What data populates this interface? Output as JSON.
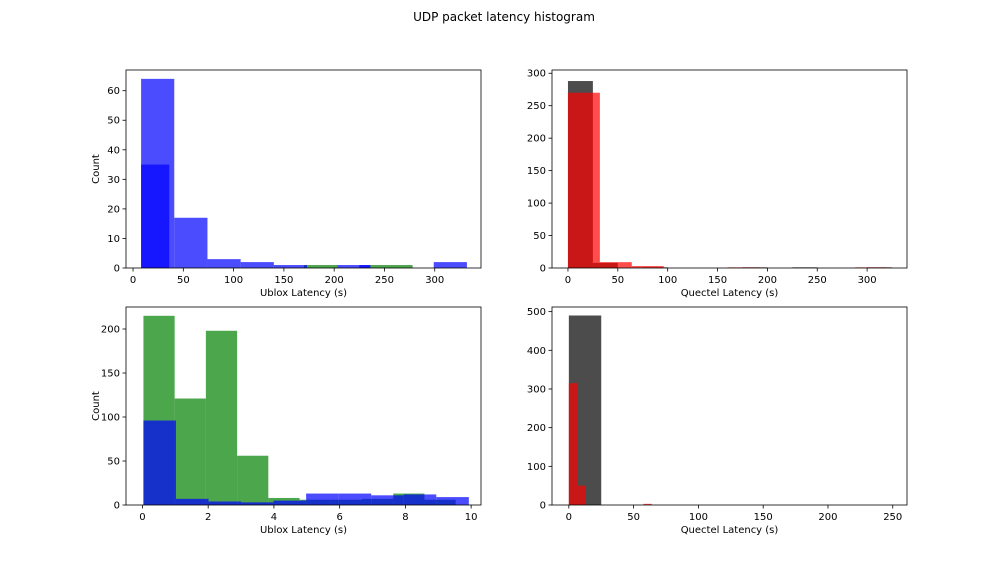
{
  "figure": {
    "title": "UDP packet latency histogram"
  },
  "chart_data": [
    {
      "type": "bar",
      "xlabel": "Ublox Latency (s)",
      "ylabel": "Count",
      "xlim": [
        -7,
        346
      ],
      "ylim": [
        0,
        67
      ],
      "xticks": [
        0,
        50,
        100,
        150,
        200,
        250,
        300
      ],
      "yticks": [
        0,
        10,
        20,
        30,
        40,
        50,
        60
      ],
      "series": [
        {
          "color": "#008000",
          "alpha": 0.7,
          "bins": [
            [
              170,
              203,
              1
            ],
            [
              236,
              278,
              1
            ]
          ]
        },
        {
          "color": "#0000ff",
          "alpha": 0.7,
          "bins": [
            [
              8,
              41,
              64
            ],
            [
              41,
              74,
              17
            ],
            [
              74,
              107,
              3
            ],
            [
              107,
              140,
              2
            ],
            [
              140,
              173,
              1
            ],
            [
              173,
              203,
              0
            ],
            [
              203,
              236,
              1
            ],
            [
              236,
              269,
              0
            ],
            [
              269,
              299,
              0
            ],
            [
              299,
              332,
              2
            ]
          ]
        },
        {
          "color": "#0000ff",
          "alpha": 0.7,
          "bins": [
            [
              8,
              36,
              35
            ],
            [
              225,
              236,
              1
            ]
          ]
        }
      ]
    },
    {
      "type": "bar",
      "xlabel": "Quectel Latency (s)",
      "ylabel": "",
      "xlim": [
        -16,
        340
      ],
      "ylim": [
        0,
        305
      ],
      "xticks": [
        0,
        50,
        100,
        150,
        200,
        250,
        300
      ],
      "yticks": [
        0,
        50,
        100,
        150,
        200,
        250,
        300
      ],
      "series": [
        {
          "color": "#000000",
          "alpha": 0.7,
          "bins": [
            [
              0,
              25,
              288
            ],
            [
              25,
              50,
              8
            ],
            [
              50,
              75,
              0
            ],
            [
              75,
              100,
              1
            ],
            [
              175,
              200,
              1
            ],
            [
              225,
              250,
              1
            ],
            [
              300,
              325,
              1
            ]
          ]
        },
        {
          "color": "#ff0000",
          "alpha": 0.7,
          "bins": [
            [
              0,
              32,
              270
            ],
            [
              32,
              64,
              9
            ],
            [
              64,
              96,
              3
            ],
            [
              160,
              192,
              1
            ],
            [
              288,
              320,
              1
            ]
          ]
        }
      ]
    },
    {
      "type": "bar",
      "xlabel": "Ublox Latency (s)",
      "ylabel": "Count",
      "xlim": [
        -0.5,
        10.3
      ],
      "ylim": [
        0,
        225
      ],
      "xticks": [
        0,
        2,
        4,
        6,
        8,
        10
      ],
      "yticks": [
        0,
        50,
        100,
        150,
        200
      ],
      "series": [
        {
          "color": "#008000",
          "alpha": 0.7,
          "bins": [
            [
              0.03,
              0.98,
              215
            ],
            [
              0.98,
              1.93,
              121
            ],
            [
              1.93,
              2.88,
              198
            ],
            [
              2.88,
              3.83,
              56
            ],
            [
              3.83,
              4.78,
              8
            ],
            [
              4.78,
              5.73,
              6
            ],
            [
              5.73,
              6.68,
              6
            ],
            [
              6.68,
              7.63,
              7
            ],
            [
              7.63,
              8.58,
              13
            ],
            [
              8.58,
              9.53,
              6
            ]
          ]
        },
        {
          "color": "#0000ff",
          "alpha": 0.7,
          "bins": [
            [
              0.03,
              1.02,
              96
            ],
            [
              1.02,
              2.01,
              7
            ],
            [
              2.01,
              3.0,
              4
            ],
            [
              3.0,
              3.99,
              3
            ],
            [
              3.99,
              4.98,
              5
            ],
            [
              4.98,
              5.97,
              13
            ],
            [
              5.97,
              6.96,
              13
            ],
            [
              6.96,
              7.95,
              11
            ],
            [
              7.95,
              8.94,
              12
            ],
            [
              8.94,
              9.93,
              9
            ]
          ]
        }
      ]
    },
    {
      "type": "bar",
      "xlabel": "Quectel Latency (s)",
      "ylabel": "",
      "xlim": [
        -13,
        261
      ],
      "ylim": [
        0,
        512
      ],
      "xticks": [
        0,
        50,
        100,
        150,
        200,
        250
      ],
      "yticks": [
        0,
        100,
        200,
        300,
        400,
        500
      ],
      "series": [
        {
          "color": "#000000",
          "alpha": 0.7,
          "bins": [
            [
              0,
              25,
              490
            ]
          ]
        },
        {
          "color": "#ff0000",
          "alpha": 0.7,
          "bins": [
            [
              0,
              6.4,
              315
            ],
            [
              6.4,
              12.8,
              50
            ],
            [
              57.6,
              64,
              3
            ]
          ]
        }
      ]
    }
  ]
}
